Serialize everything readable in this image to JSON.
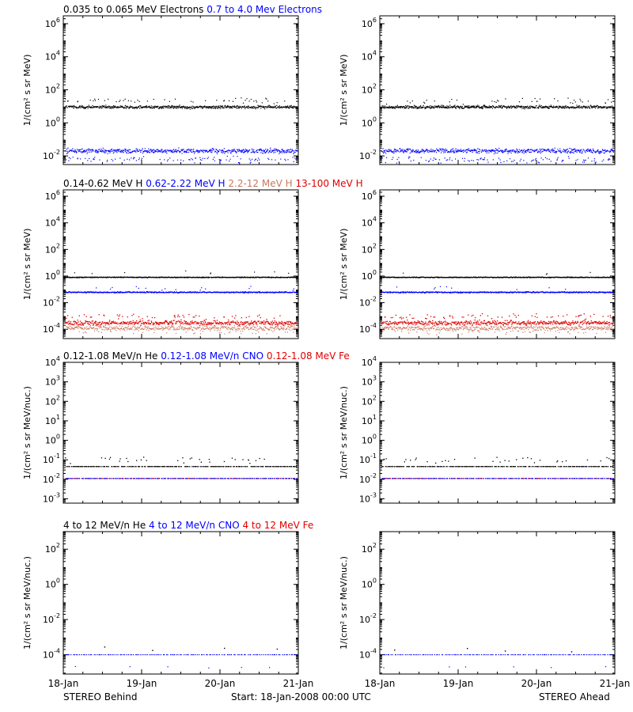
{
  "colors": {
    "black": "#000000",
    "blue": "#0000ff",
    "tan": "#c87860",
    "red": "#e00000"
  },
  "footer": {
    "left": "STEREO Behind",
    "center": "Start: 18-Jan-2008 00:00 UTC",
    "right": "STEREO Ahead"
  },
  "chart_data": [
    {
      "type": "scatter",
      "row": 1,
      "panels": [
        "STEREO Behind",
        "STEREO Ahead"
      ],
      "titles": [
        {
          "text": "0.035 to 0.065 MeV Electrons",
          "color": "#000000"
        },
        {
          "text": "0.7 to 4.0 Mev Electrons",
          "color": "#0000ff"
        }
      ],
      "ylabel": "1/(cm² s sr MeV)",
      "yscale": "log",
      "ylim": [
        0.003,
        3000000
      ],
      "yticks": [
        {
          "value": 0.01,
          "base": "10",
          "exp": "-2"
        },
        {
          "value": 1,
          "base": "10",
          "exp": "0"
        },
        {
          "value": 100,
          "base": "10",
          "exp": "2"
        },
        {
          "value": 10000,
          "base": "10",
          "exp": "4"
        },
        {
          "value": 1000000,
          "base": "10",
          "exp": "6"
        }
      ],
      "xlim": [
        "2008-01-18",
        "2008-01-21"
      ],
      "xticks": [
        "18-Jan",
        "19-Jan",
        "20-Jan",
        "21-Jan"
      ],
      "series": [
        {
          "color": "#000000",
          "level": 9,
          "spread": 0.15,
          "density": 2.2,
          "size": 1.2,
          "outliers": 0.06,
          "out_level": 22
        },
        {
          "color": "#0000ff",
          "level": 0.02,
          "spread": 0.22,
          "density": 2.2,
          "size": 1.2,
          "outliers": 0.15,
          "out_level": 0.006
        }
      ]
    },
    {
      "type": "scatter",
      "row": 2,
      "panels": [
        "STEREO Behind",
        "STEREO Ahead"
      ],
      "titles": [
        {
          "text": "0.14-0.62 MeV H",
          "color": "#000000"
        },
        {
          "text": "0.62-2.22 MeV H",
          "color": "#0000ff"
        },
        {
          "text": "2.2-12 MeV H",
          "color": "#c87860"
        },
        {
          "text": "13-100 MeV H",
          "color": "#e00000"
        }
      ],
      "ylabel": "1/(cm² s sr MeV)",
      "yscale": "log",
      "ylim": [
        2e-05,
        3000000
      ],
      "yticks": [
        {
          "value": 0.0001,
          "base": "10",
          "exp": "-4"
        },
        {
          "value": 0.01,
          "base": "10",
          "exp": "-2"
        },
        {
          "value": 1,
          "base": "10",
          "exp": "0"
        },
        {
          "value": 100,
          "base": "10",
          "exp": "2"
        },
        {
          "value": 10000,
          "base": "10",
          "exp": "4"
        },
        {
          "value": 1000000,
          "base": "10",
          "exp": "6"
        }
      ],
      "xlim": [
        "2008-01-18",
        "2008-01-21"
      ],
      "xticks": [
        "18-Jan",
        "19-Jan",
        "20-Jan",
        "21-Jan"
      ],
      "series": [
        {
          "color": "#000000",
          "level": 0.8,
          "spread": 0.05,
          "density": 2.2,
          "size": 1.2,
          "outliers": 0.02,
          "out_level": 1.5
        },
        {
          "color": "#0000ff",
          "level": 0.06,
          "spread": 0.07,
          "density": 2.2,
          "size": 1.2,
          "outliers": 0.02,
          "out_level": 0.12
        },
        {
          "color": "#c87860",
          "level": 0.00012,
          "spread": 0.28,
          "density": 1.6,
          "size": 1.2,
          "outliers": 0.1,
          "out_level": 6e-05
        },
        {
          "color": "#e00000",
          "level": 0.0003,
          "spread": 0.28,
          "density": 1.8,
          "size": 1.3,
          "outliers": 0.12,
          "out_level": 0.0009
        }
      ]
    },
    {
      "type": "scatter",
      "row": 3,
      "panels": [
        "STEREO Behind",
        "STEREO Ahead"
      ],
      "titles": [
        {
          "text": "0.12-1.08 MeV/n He",
          "color": "#000000"
        },
        {
          "text": "0.12-1.08 MeV/n CNO",
          "color": "#0000ff"
        },
        {
          "text": "0.12-1.08 MeV Fe",
          "color": "#e00000"
        }
      ],
      "ylabel": "1/(cm² s sr MeV/nuc.)",
      "yscale": "log",
      "ylim": [
        0.0006,
        10000
      ],
      "yticks": [
        {
          "value": 0.001,
          "base": "10",
          "exp": "-3"
        },
        {
          "value": 0.01,
          "base": "10",
          "exp": "-2"
        },
        {
          "value": 0.1,
          "base": "10",
          "exp": "-1"
        },
        {
          "value": 1,
          "base": "10",
          "exp": "0"
        },
        {
          "value": 10,
          "base": "10",
          "exp": "1"
        },
        {
          "value": 100,
          "base": "10",
          "exp": "2"
        },
        {
          "value": 1000,
          "base": "10",
          "exp": "3"
        },
        {
          "value": 10000,
          "base": "10",
          "exp": "4"
        }
      ],
      "xlim": [
        "2008-01-18",
        "2008-01-21"
      ],
      "xticks": [
        "18-Jan",
        "19-Jan",
        "20-Jan",
        "21-Jan"
      ],
      "series": [
        {
          "color": "#000000",
          "level": 0.045,
          "spread": 0.0,
          "density": 0.8,
          "size": 1.3,
          "outliers": 0.15,
          "out_level": 0.1
        },
        {
          "color": "#e00000",
          "level": 0.011,
          "spread": 0.0,
          "density": 0.4,
          "size": 1.3,
          "outliers": 0.0,
          "out_level": 0.011
        },
        {
          "color": "#0000ff",
          "level": 0.011,
          "spread": 0.0,
          "density": 0.5,
          "size": 1.3,
          "outliers": 0.0,
          "out_level": 0.011
        }
      ]
    },
    {
      "type": "scatter",
      "row": 4,
      "panels": [
        "STEREO Behind",
        "STEREO Ahead"
      ],
      "titles": [
        {
          "text": "4 to 12 MeV/n He",
          "color": "#000000"
        },
        {
          "text": "4 to 12 MeV/n CNO",
          "color": "#0000ff"
        },
        {
          "text": "4 to 12 MeV Fe",
          "color": "#e00000"
        }
      ],
      "ylabel": "1/(cm² s sr MeV/nuc.)",
      "yscale": "log",
      "ylim": [
        8e-06,
        1000
      ],
      "yticks": [
        {
          "value": 0.0001,
          "base": "10",
          "exp": "-4"
        },
        {
          "value": 0.01,
          "base": "10",
          "exp": "-2"
        },
        {
          "value": 1,
          "base": "10",
          "exp": "0"
        },
        {
          "value": 100,
          "base": "10",
          "exp": "2"
        }
      ],
      "xlim": [
        "2008-01-18",
        "2008-01-21"
      ],
      "xticks": [
        "18-Jan",
        "19-Jan",
        "20-Jan",
        "21-Jan"
      ],
      "series": [
        {
          "color": "#0000ff",
          "level": 0.0001,
          "spread": 0.0,
          "density": 0.45,
          "size": 1.2,
          "outliers": 0.0,
          "out_level": 0.0001
        },
        {
          "color": "#000000",
          "level": 0.0002,
          "spread": 0.2,
          "density": 0.012,
          "size": 1.4,
          "outliers": 0.0,
          "out_level": 0.0002
        },
        {
          "color": "#0000ff",
          "level": 2e-05,
          "spread": 0.1,
          "density": 0.02,
          "size": 1.2,
          "outliers": 0.0,
          "out_level": 2e-05
        }
      ]
    }
  ]
}
